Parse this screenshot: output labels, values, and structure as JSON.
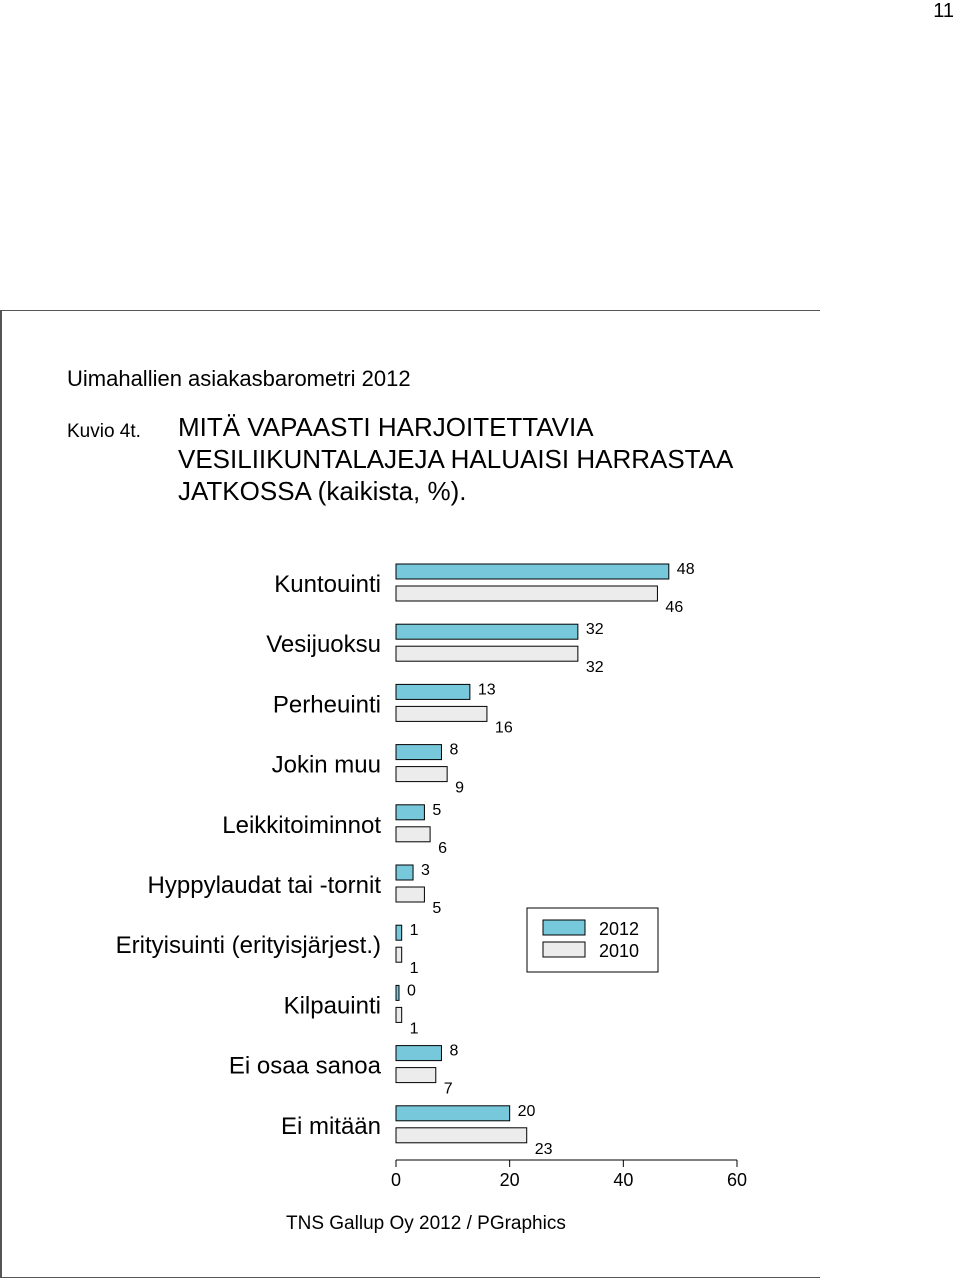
{
  "page": {
    "number": "11"
  },
  "header": {
    "report_title": "Uimahallien asiakasbarometri 2012",
    "figure_label": "Kuvio 4t.",
    "figure_title": "MITÄ VAPAASTI HARJOITETTAVIA VESILIIKUNTALAJEJA HALUAISI HARRASTAA JATKOSSA (kaikista, %)."
  },
  "chart_data": {
    "type": "bar",
    "orientation": "horizontal",
    "categories": [
      "Kuntouinti",
      "Vesijuoksu",
      "Perheuinti",
      "Jokin muu",
      "Leikkitoiminnot",
      "Hyppylaudat tai -tornit",
      "Erityisuinti (erityisjärjest.)",
      "Kilpauinti",
      "Ei osaa sanoa",
      "Ei mitään"
    ],
    "series": [
      {
        "name": "2012",
        "color": "#78c8dc",
        "values": [
          48,
          32,
          13,
          8,
          5,
          3,
          1,
          0,
          8,
          20
        ]
      },
      {
        "name": "2010",
        "color": "#ececec",
        "values": [
          46,
          32,
          16,
          9,
          6,
          5,
          1,
          1,
          7,
          23
        ]
      }
    ],
    "xlim": [
      0,
      60
    ],
    "xticks": [
      "0",
      "20",
      "40",
      "60"
    ],
    "legend_position": "right",
    "grid": false
  },
  "footer": {
    "source": "TNS Gallup Oy 2012 / PGraphics"
  }
}
